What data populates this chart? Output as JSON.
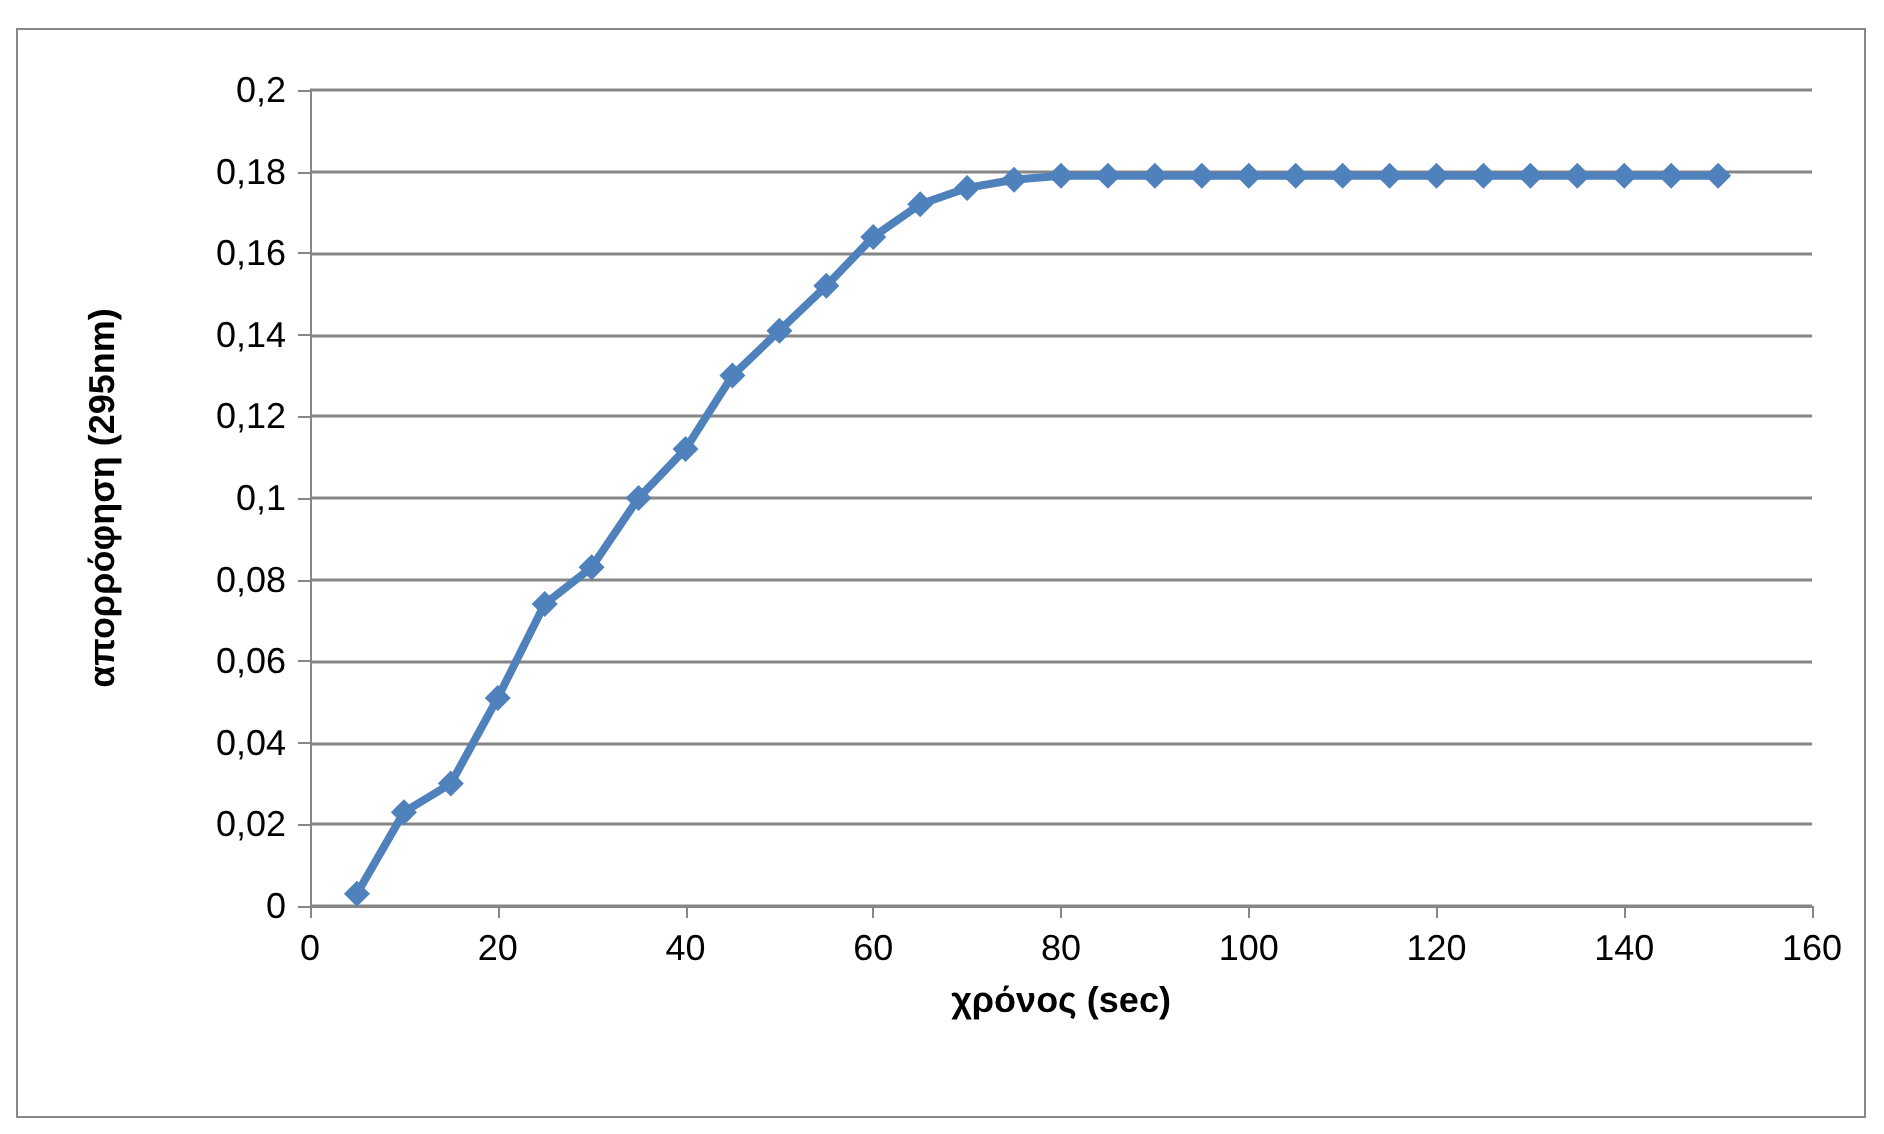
{
  "chart_data": {
    "type": "line",
    "xlabel": "χρόνος (sec)",
    "ylabel": "απορρόφηση (295nm)",
    "x": [
      5,
      10,
      15,
      20,
      25,
      30,
      35,
      40,
      45,
      50,
      55,
      60,
      65,
      70,
      75,
      80,
      85,
      90,
      95,
      100,
      105,
      110,
      115,
      120,
      125,
      130,
      135,
      140,
      145,
      150
    ],
    "series": [
      {
        "color": "#4f81bd",
        "values": [
          0.003,
          0.023,
          0.03,
          0.051,
          0.074,
          0.083,
          0.1,
          0.112,
          0.13,
          0.141,
          0.152,
          0.164,
          0.172,
          0.176,
          0.178,
          0.179,
          0.179,
          0.179,
          0.179,
          0.179,
          0.179,
          0.179,
          0.179,
          0.179,
          0.179,
          0.179,
          0.179,
          0.179,
          0.179,
          0.179
        ]
      }
    ],
    "xlim": [
      0,
      160
    ],
    "xticks": [
      0,
      20,
      40,
      60,
      80,
      100,
      120,
      140,
      160
    ],
    "ylim": [
      0,
      0.2
    ],
    "yticks": [
      {
        "value": 0,
        "label": "0"
      },
      {
        "value": 0.02,
        "label": "0,02"
      },
      {
        "value": 0.04,
        "label": "0,04"
      },
      {
        "value": 0.06,
        "label": "0,06"
      },
      {
        "value": 0.08,
        "label": "0,08"
      },
      {
        "value": 0.1,
        "label": "0,1"
      },
      {
        "value": 0.12,
        "label": "0,12"
      },
      {
        "value": 0.14,
        "label": "0,14"
      },
      {
        "value": 0.16,
        "label": "0,16"
      },
      {
        "value": 0.18,
        "label": "0,18"
      },
      {
        "value": 0.2,
        "label": "0,2"
      }
    ],
    "grid": "y",
    "marker": "diamond",
    "line_style": "solid"
  }
}
